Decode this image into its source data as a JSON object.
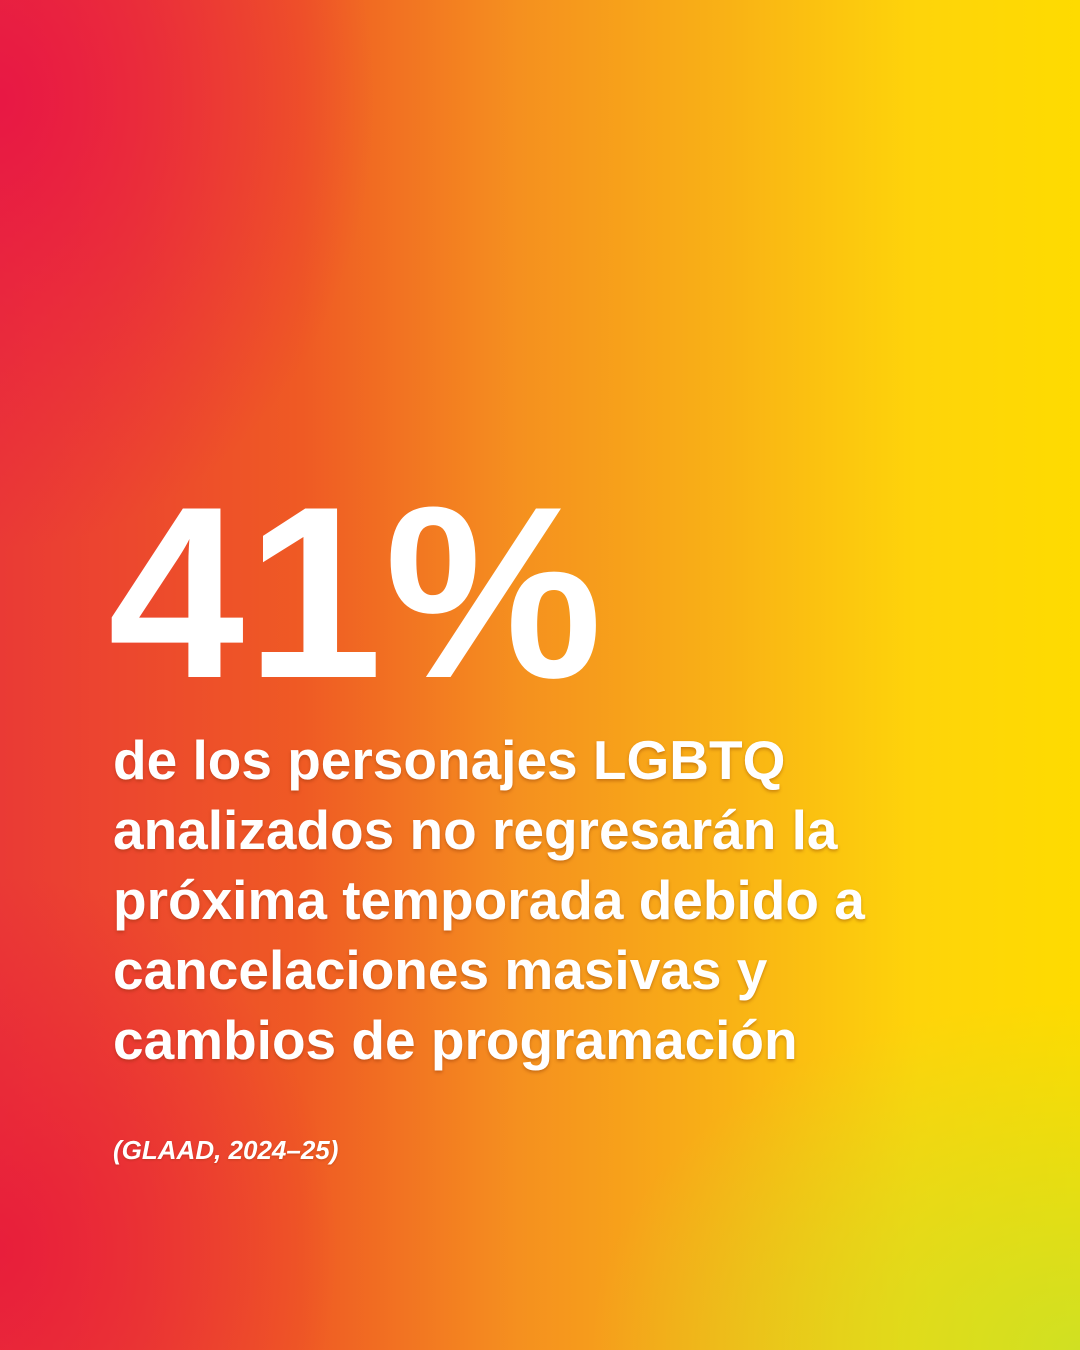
{
  "stat": "41%",
  "description": [
    "de los personajes LGBTQ",
    "analizados no regresarán la",
    "próxima temporada debido a",
    "cancelaciones masivas y",
    "cambios de programación"
  ],
  "source": "(GLAAD, 2024–25)"
}
